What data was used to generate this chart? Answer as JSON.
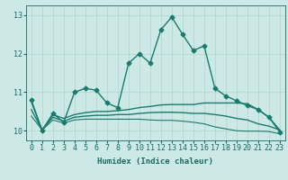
{
  "x": [
    0,
    1,
    2,
    3,
    4,
    5,
    6,
    7,
    8,
    9,
    10,
    11,
    12,
    13,
    14,
    15,
    16,
    17,
    18,
    19,
    20,
    21,
    22,
    23
  ],
  "lines": [
    {
      "y": [
        10.8,
        10.0,
        10.45,
        10.22,
        11.0,
        11.1,
        11.05,
        10.72,
        10.6,
        11.75,
        12.0,
        11.75,
        12.62,
        12.95,
        12.5,
        12.08,
        12.2,
        11.1,
        10.9,
        10.78,
        10.65,
        10.55,
        10.35,
        9.97
      ],
      "color": "#1a7a6e",
      "marker": "D",
      "markersize": 2.5,
      "linewidth": 1.0,
      "zorder": 5
    },
    {
      "y": [
        10.75,
        10.02,
        10.42,
        10.32,
        10.42,
        10.47,
        10.5,
        10.5,
        10.52,
        10.55,
        10.6,
        10.63,
        10.67,
        10.68,
        10.68,
        10.68,
        10.72,
        10.72,
        10.72,
        10.72,
        10.7,
        10.55,
        10.35,
        10.02
      ],
      "color": "#1a7a6e",
      "marker": null,
      "markersize": 0,
      "linewidth": 1.0,
      "zorder": 3
    },
    {
      "y": [
        10.55,
        10.02,
        10.35,
        10.25,
        10.35,
        10.38,
        10.4,
        10.4,
        10.42,
        10.42,
        10.45,
        10.47,
        10.48,
        10.48,
        10.47,
        10.45,
        10.45,
        10.42,
        10.38,
        10.32,
        10.28,
        10.18,
        10.12,
        10.02
      ],
      "color": "#1a7a6e",
      "marker": null,
      "markersize": 0,
      "linewidth": 1.0,
      "zorder": 2
    },
    {
      "y": [
        10.38,
        10.02,
        10.28,
        10.2,
        10.28,
        10.3,
        10.3,
        10.3,
        10.3,
        10.3,
        10.3,
        10.28,
        10.27,
        10.27,
        10.25,
        10.22,
        10.18,
        10.1,
        10.05,
        10.0,
        9.99,
        9.99,
        9.98,
        9.92
      ],
      "color": "#1a7a6e",
      "marker": null,
      "markersize": 0,
      "linewidth": 0.8,
      "zorder": 2
    }
  ],
  "bg_color": "#cce9e5",
  "grid_color": "#aed4cf",
  "text_color": "#1a6b5f",
  "xlabel": "Humidex (Indice chaleur)",
  "ylim": [
    9.75,
    13.25
  ],
  "yticks": [
    10,
    11,
    12,
    13
  ],
  "xticks": [
    0,
    1,
    2,
    3,
    4,
    5,
    6,
    7,
    8,
    9,
    10,
    11,
    12,
    13,
    14,
    15,
    16,
    17,
    18,
    19,
    20,
    21,
    22,
    23
  ],
  "xlabel_fontsize": 6.5,
  "tick_fontsize": 6.0
}
